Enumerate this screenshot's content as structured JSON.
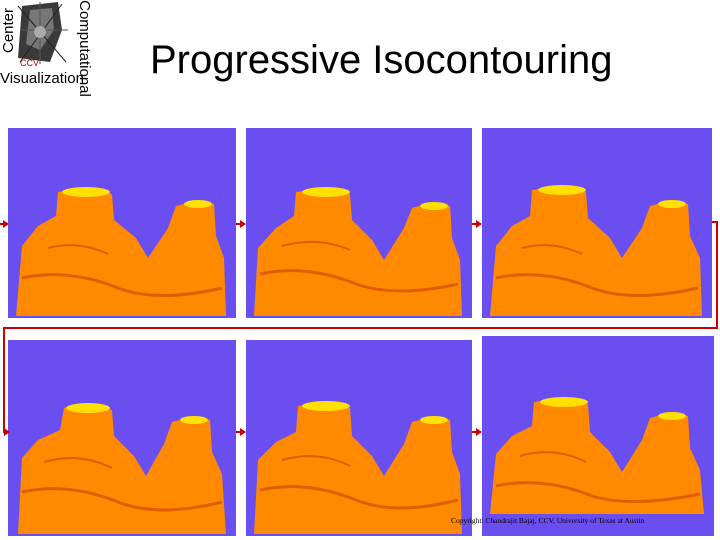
{
  "logo": {
    "top_left_text": "Center",
    "right_text": "Computational",
    "bottom_text": "Visualization",
    "inner_text": "CCV"
  },
  "slide": {
    "title": "Progressive Isocontouring"
  },
  "footer": {
    "copyright": "Copyright: Chandrajit Bajaj, CCV, University of Texas at Austin"
  },
  "colors": {
    "panel_bg": "#6a4ef0",
    "surface": "#ff8a00",
    "surface_dark": "#e05e00",
    "surface_highlight": "#ffe000",
    "arrow": "#cc0000"
  }
}
